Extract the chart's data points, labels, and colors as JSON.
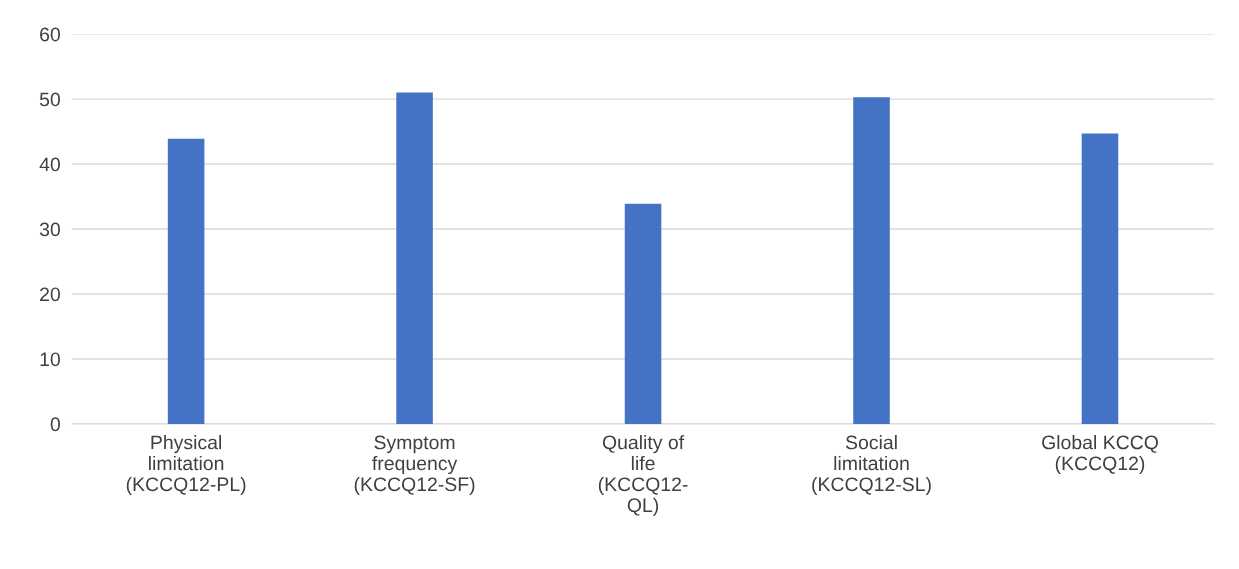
{
  "chart_data": {
    "type": "bar",
    "categories": [
      "Physical\nlimitation\n(KCCQ12-PL)",
      "Symptom\nfrequency\n(KCCQ12-SF)",
      "Quality of\nlife\n(KCCQ12-\nQL)",
      "Social\nlimitation\n(KCCQ12-SL)",
      "Global KCCQ\n(KCCQ12)"
    ],
    "values": [
      43.9,
      51,
      33.9,
      50.3,
      44.7
    ],
    "color": "#4472c4",
    "ylim": [
      0,
      60
    ],
    "yticks": [
      0,
      10,
      20,
      30,
      40,
      50,
      60
    ],
    "grid": "y",
    "legend": false
  }
}
